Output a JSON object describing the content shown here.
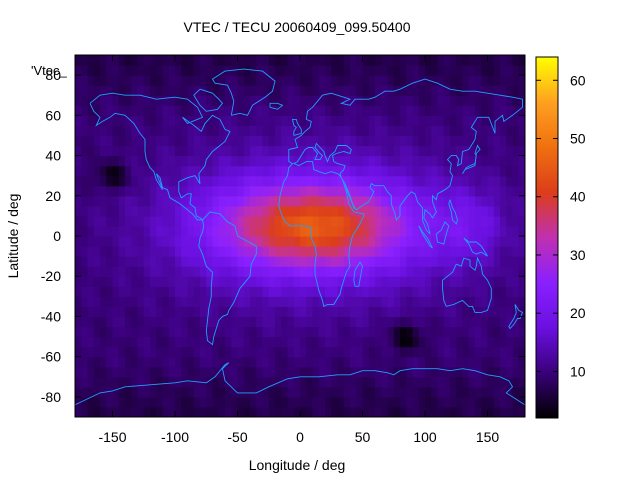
{
  "chart_data": {
    "type": "heatmap",
    "title": "VTEC / TECU 20060409_099.50400",
    "xlabel": "Longitude / deg",
    "ylabel": "Latitude / deg",
    "series_label": "'Vtec_",
    "xlim": [
      -180,
      180
    ],
    "ylim": [
      -90,
      90
    ],
    "xticks": [
      -150,
      -100,
      -50,
      0,
      50,
      100,
      150
    ],
    "yticks": [
      -80,
      -60,
      -40,
      -20,
      0,
      20,
      40,
      60,
      80
    ],
    "colorbar": {
      "range": [
        2,
        64
      ],
      "ticks": [
        10,
        20,
        30,
        40,
        50,
        60
      ]
    },
    "palette": [
      "#000000",
      "#3a007a",
      "#6a10e0",
      "#8a20ff",
      "#c030b0",
      "#dc3d1a",
      "#f07010",
      "#ffa020",
      "#ffff00"
    ],
    "coastline_color": "#1ea0ff",
    "features": {
      "equatorial_anomaly": {
        "lon_center": 10,
        "lat_center": 5,
        "peak_tecu": 40
      },
      "background_tecu": 9,
      "local_minima": [
        {
          "lon": -150,
          "lat": 30,
          "tecu": 3
        },
        {
          "lon": 85,
          "lat": -50,
          "tecu": 4
        }
      ]
    }
  }
}
